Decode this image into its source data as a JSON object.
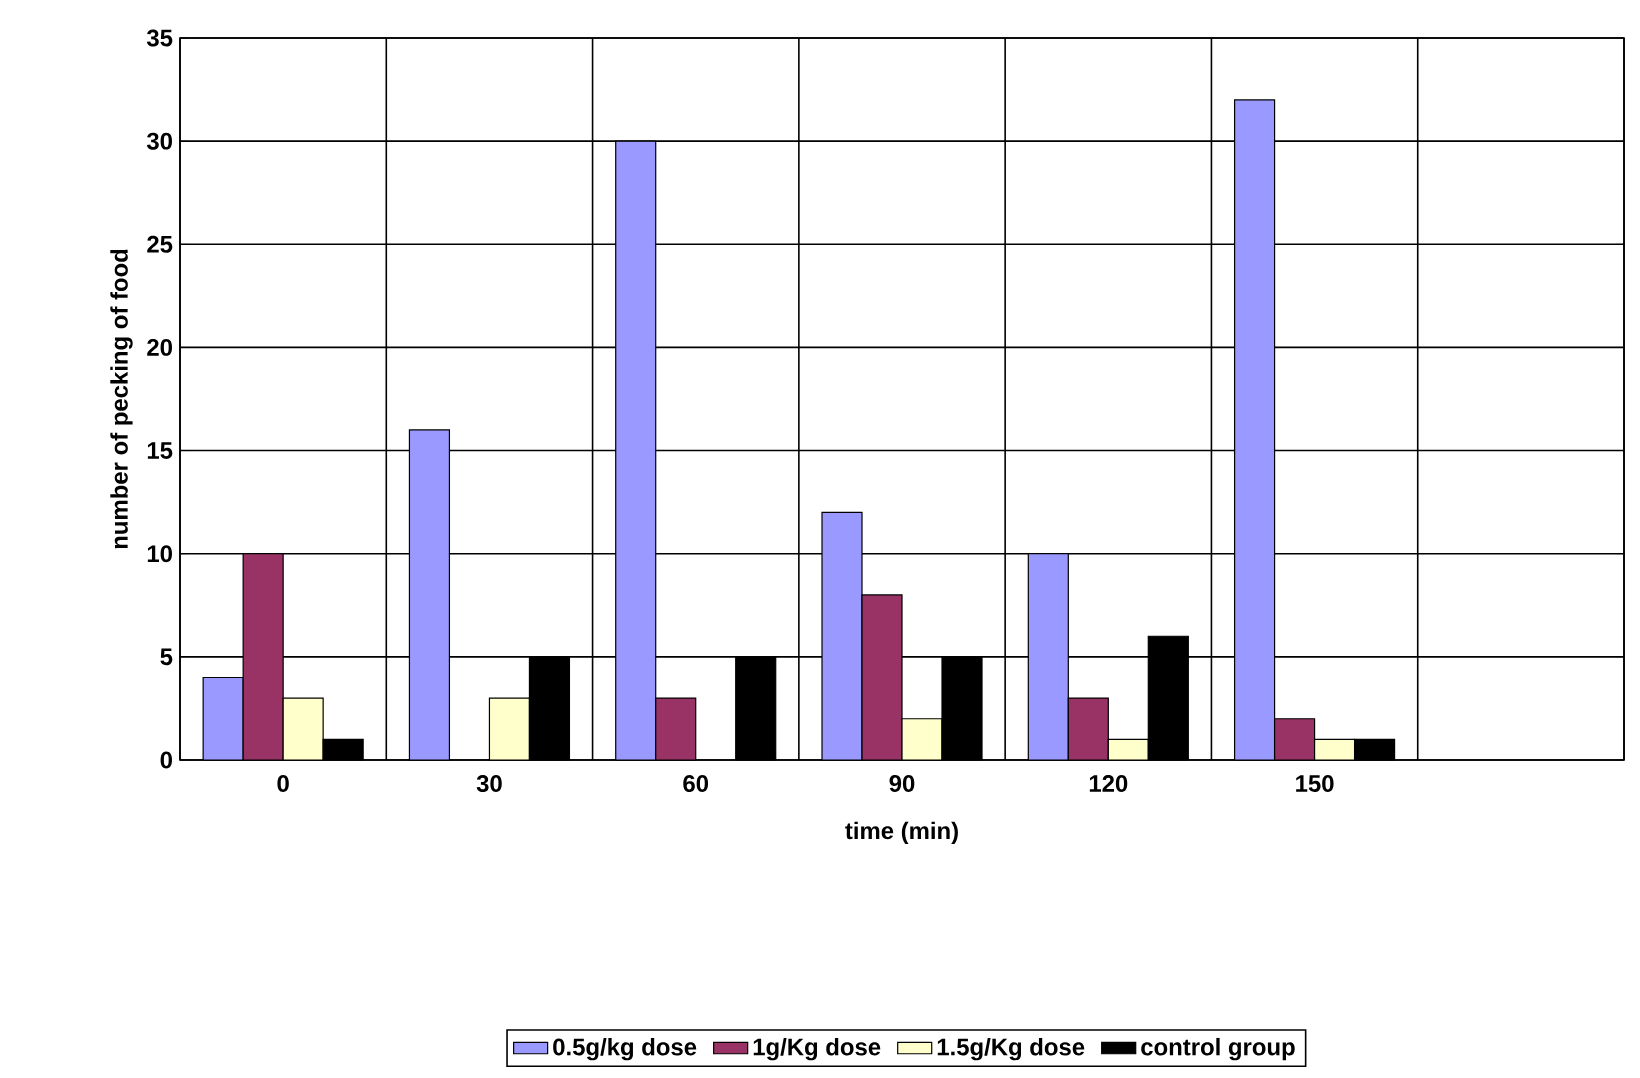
{
  "chart_data": {
    "type": "bar",
    "categories": [
      "0",
      "30",
      "60",
      "90",
      "120",
      "150",
      null
    ],
    "series": [
      {
        "name": "0.5g/kg dose",
        "color": "#9999ff",
        "values": [
          4,
          16,
          30,
          12,
          10,
          32,
          null
        ]
      },
      {
        "name": "1g/Kg dose",
        "color": "#993366",
        "values": [
          10,
          null,
          3,
          8,
          3,
          2,
          null
        ]
      },
      {
        "name": "1.5g/Kg dose",
        "color": "#ffffcc",
        "values": [
          3,
          3,
          null,
          2,
          1,
          1,
          null
        ]
      },
      {
        "name": "control group",
        "color": "#000000",
        "values": [
          1,
          5,
          5,
          5,
          6,
          1,
          null
        ]
      }
    ],
    "xlabel": "time (min)",
    "ylabel": "number of pecking of  food",
    "ylim": [
      0,
      35
    ],
    "yticks": [
      0,
      5,
      10,
      15,
      20,
      25,
      30,
      35
    ],
    "grid": true,
    "legend": "bottom"
  }
}
